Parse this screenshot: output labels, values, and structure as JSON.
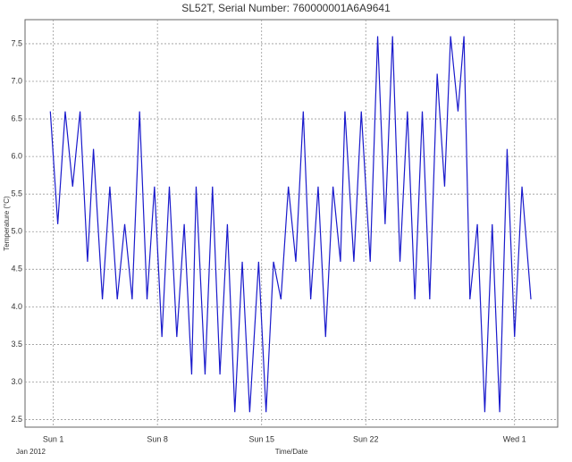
{
  "chart_data": {
    "type": "line",
    "title": "SL52T,  Serial Number: 760000001A6A9641",
    "x_label": "Time/Date",
    "y_label": "Temperature (°C)",
    "period_label": "Jan 2012",
    "x": [
      -0.2,
      0.3,
      0.8,
      1.3,
      1.8,
      2.3,
      2.7,
      3.3,
      3.8,
      4.3,
      4.8,
      5.3,
      5.8,
      6.3,
      6.8,
      7.3,
      7.8,
      8.3,
      8.8,
      9.3,
      9.6,
      10.2,
      10.7,
      11.2,
      11.7,
      12.2,
      12.7,
      13.2,
      13.8,
      14.3,
      14.8,
      15.3,
      15.8,
      16.3,
      16.8,
      17.3,
      17.8,
      18.3,
      18.8,
      19.3,
      19.6,
      20.2,
      20.7,
      21.3,
      21.8,
      22.3,
      22.8,
      23.3,
      23.8,
      24.3,
      24.8,
      25.3,
      25.8,
      26.3,
      26.7,
      27.2,
      27.6,
      28.0,
      28.5,
      29.0,
      29.5,
      30.0,
      30.5,
      31.0,
      31.5,
      32.1
    ],
    "series": [
      {
        "name": "Temperature",
        "color": "#1a1acc",
        "values": [
          6.6,
          5.1,
          6.6,
          5.6,
          6.6,
          4.6,
          6.1,
          4.1,
          5.6,
          4.1,
          5.1,
          4.1,
          6.6,
          4.1,
          5.6,
          3.6,
          5.6,
          3.6,
          5.1,
          3.1,
          5.6,
          3.1,
          5.6,
          3.1,
          5.1,
          2.6,
          4.6,
          2.6,
          4.6,
          2.6,
          4.6,
          4.1,
          5.6,
          4.6,
          6.6,
          4.1,
          5.6,
          3.6,
          5.6,
          4.6,
          6.6,
          4.6,
          6.6,
          4.6,
          7.6,
          5.1,
          7.6,
          4.6,
          6.6,
          4.1,
          6.6,
          4.1,
          7.1,
          5.6,
          7.6,
          6.6,
          7.6,
          4.1,
          5.1,
          2.6,
          5.1,
          2.6,
          6.1,
          3.6,
          5.6,
          4.1
        ]
      }
    ],
    "xlim": [
      -1.9,
      33.9
    ],
    "xticks": [
      {
        "value": 0,
        "label": "Sun 1"
      },
      {
        "value": 7,
        "label": "Sun 8"
      },
      {
        "value": 14,
        "label": "Sun 15"
      },
      {
        "value": 21,
        "label": "Sun 22"
      },
      {
        "value": 31,
        "label": "Wed 1"
      }
    ],
    "ylim": [
      2.4,
      7.82
    ],
    "yticks": [
      2.5,
      {
        "value": 3,
        "label": "3.0"
      },
      3.5,
      {
        "value": 4,
        "label": "4.0"
      },
      4.5,
      {
        "value": 5,
        "label": "5.0"
      },
      5.5,
      {
        "value": 6,
        "label": "6.0"
      },
      6.5,
      {
        "value": 7,
        "label": "7.0"
      },
      7.5
    ],
    "grid": true
  }
}
